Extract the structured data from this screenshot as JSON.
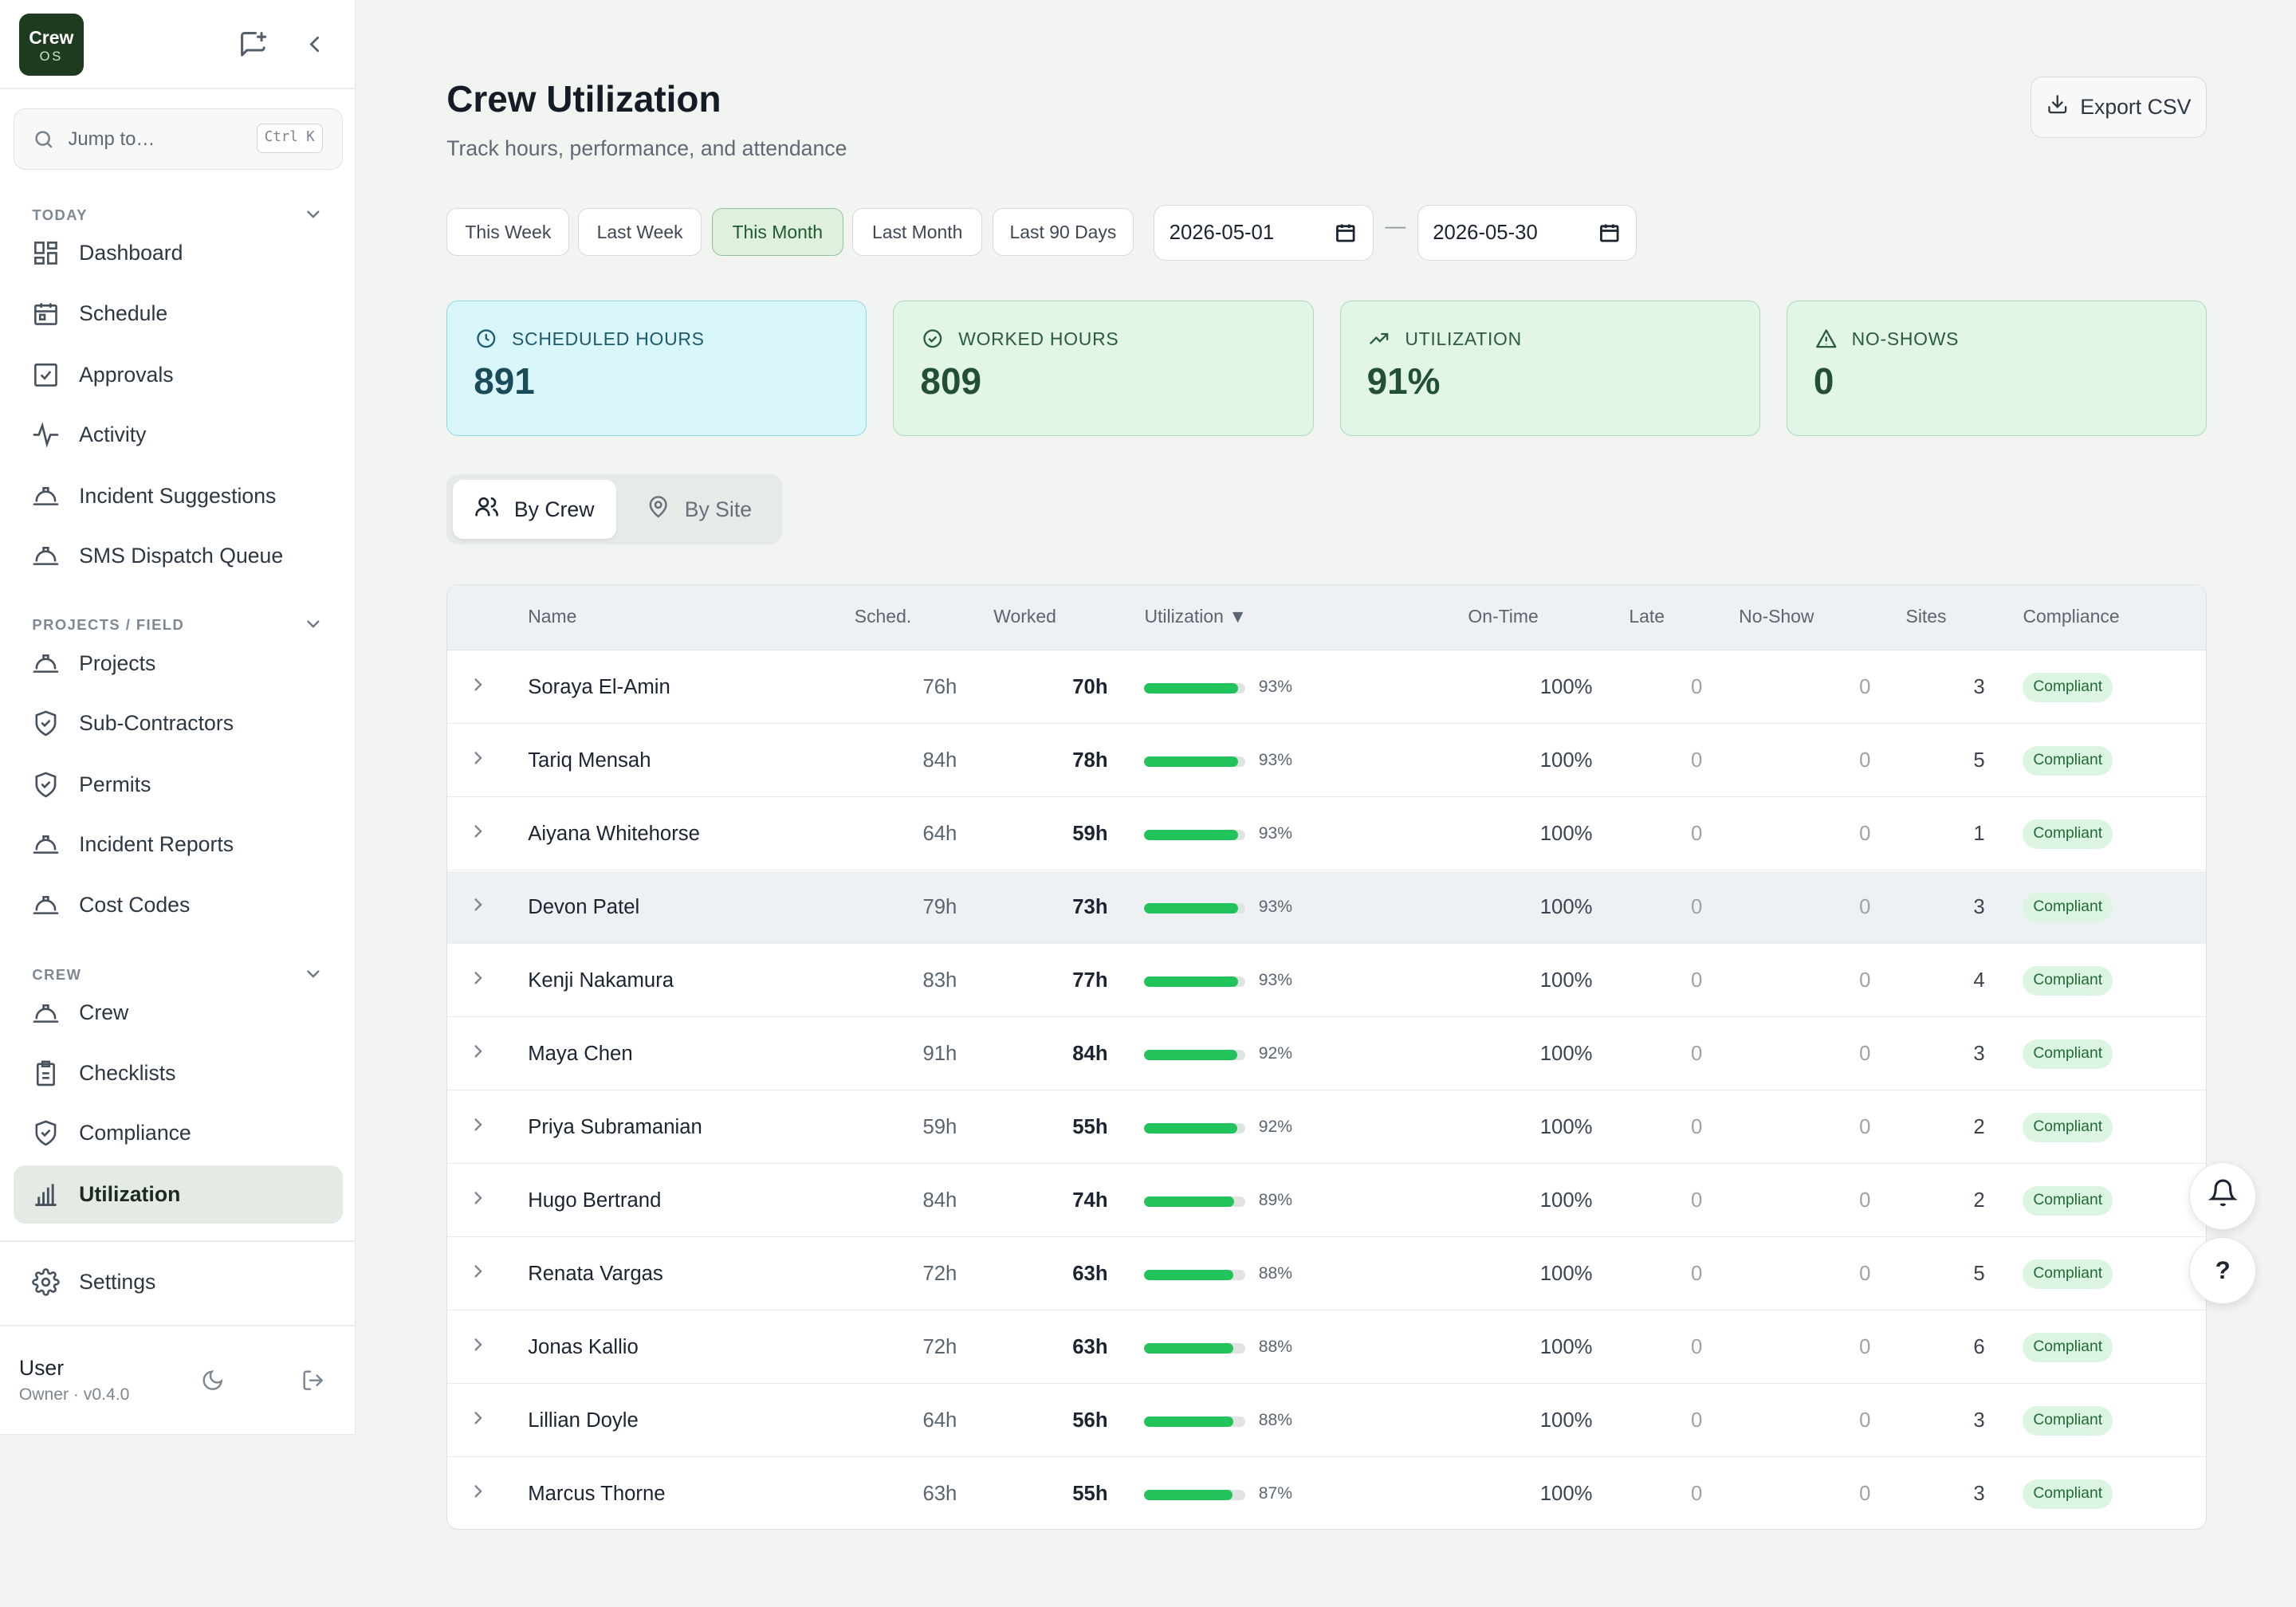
{
  "app": {
    "logo_line1": "Crew",
    "logo_line2": "OS"
  },
  "search": {
    "placeholder": "Jump to…",
    "shortcut": "Ctrl K"
  },
  "sidebar": {
    "sections": [
      {
        "label": "TODAY",
        "items": [
          {
            "label": "Dashboard",
            "icon": "dashboard-icon"
          },
          {
            "label": "Schedule",
            "icon": "calendar-icon"
          },
          {
            "label": "Approvals",
            "icon": "check-square-icon"
          },
          {
            "label": "Activity",
            "icon": "activity-icon"
          },
          {
            "label": "Incident Suggestions",
            "icon": "hardhat-icon"
          },
          {
            "label": "SMS Dispatch Queue",
            "icon": "hardhat-icon"
          }
        ]
      },
      {
        "label": "PROJECTS / FIELD",
        "items": [
          {
            "label": "Projects",
            "icon": "hardhat-icon"
          },
          {
            "label": "Sub-Contractors",
            "icon": "shield-icon"
          },
          {
            "label": "Permits",
            "icon": "shield-icon"
          },
          {
            "label": "Incident Reports",
            "icon": "hardhat-icon"
          },
          {
            "label": "Cost Codes",
            "icon": "hardhat-icon"
          }
        ]
      },
      {
        "label": "CREW",
        "items": [
          {
            "label": "Crew",
            "icon": "hardhat-icon"
          },
          {
            "label": "Checklists",
            "icon": "clipboard-icon"
          },
          {
            "label": "Compliance",
            "icon": "shield-icon"
          },
          {
            "label": "Utilization",
            "icon": "bar-chart-icon",
            "active": true
          }
        ]
      }
    ],
    "settings_label": "Settings",
    "user": {
      "name": "User",
      "role": "Owner · v0.4.0"
    }
  },
  "page": {
    "title": "Crew Utilization",
    "subtitle": "Track hours, performance, and attendance",
    "export_label": "Export CSV"
  },
  "ranges": [
    {
      "label": "This Week",
      "selected": false
    },
    {
      "label": "Last Week",
      "selected": false
    },
    {
      "label": "This Month",
      "selected": true
    },
    {
      "label": "Last Month",
      "selected": false
    },
    {
      "label": "Last 90 Days",
      "selected": false
    }
  ],
  "dates": {
    "start": "2026-05-01",
    "end": "2026-05-30",
    "separator": "—"
  },
  "stats": [
    {
      "label": "SCHEDULED HOURS",
      "value": "891",
      "icon": "clock-icon",
      "color": "#d9f6fb"
    },
    {
      "label": "WORKED HOURS",
      "value": "809",
      "icon": "check-circle-icon",
      "color": "#e1f6e6"
    },
    {
      "label": "UTILIZATION",
      "value": "91%",
      "icon": "trending-up-icon",
      "color": "#e1f6e6"
    },
    {
      "label": "NO-SHOWS",
      "value": "0",
      "icon": "warning-icon",
      "color": "#e1f6e6"
    }
  ],
  "tabs": [
    {
      "label": "By Crew",
      "active": true
    },
    {
      "label": "By Site",
      "active": false
    }
  ],
  "table": {
    "headers": {
      "name": "Name",
      "sched": "Sched.",
      "worked": "Worked",
      "util": "Utilization ▼",
      "ontime": "On-Time",
      "late": "Late",
      "noshow": "No-Show",
      "sites": "Sites",
      "compliance": "Compliance"
    },
    "rows": [
      {
        "name": "Soraya El-Amin",
        "sched": "76h",
        "worked": "70h",
        "util": 93,
        "util_label": "93%",
        "ontime": "100%",
        "late": "0",
        "noshow": "0",
        "sites": "3",
        "compliance": "Compliant"
      },
      {
        "name": "Tariq Mensah",
        "sched": "84h",
        "worked": "78h",
        "util": 93,
        "util_label": "93%",
        "ontime": "100%",
        "late": "0",
        "noshow": "0",
        "sites": "5",
        "compliance": "Compliant"
      },
      {
        "name": "Aiyana Whitehorse",
        "sched": "64h",
        "worked": "59h",
        "util": 93,
        "util_label": "93%",
        "ontime": "100%",
        "late": "0",
        "noshow": "0",
        "sites": "1",
        "compliance": "Compliant"
      },
      {
        "name": "Devon Patel",
        "sched": "79h",
        "worked": "73h",
        "util": 93,
        "util_label": "93%",
        "ontime": "100%",
        "late": "0",
        "noshow": "0",
        "sites": "3",
        "compliance": "Compliant",
        "highlighted": true
      },
      {
        "name": "Kenji Nakamura",
        "sched": "83h",
        "worked": "77h",
        "util": 93,
        "util_label": "93%",
        "ontime": "100%",
        "late": "0",
        "noshow": "0",
        "sites": "4",
        "compliance": "Compliant"
      },
      {
        "name": "Maya Chen",
        "sched": "91h",
        "worked": "84h",
        "util": 92,
        "util_label": "92%",
        "ontime": "100%",
        "late": "0",
        "noshow": "0",
        "sites": "3",
        "compliance": "Compliant"
      },
      {
        "name": "Priya Subramanian",
        "sched": "59h",
        "worked": "55h",
        "util": 92,
        "util_label": "92%",
        "ontime": "100%",
        "late": "0",
        "noshow": "0",
        "sites": "2",
        "compliance": "Compliant"
      },
      {
        "name": "Hugo Bertrand",
        "sched": "84h",
        "worked": "74h",
        "util": 89,
        "util_label": "89%",
        "ontime": "100%",
        "late": "0",
        "noshow": "0",
        "sites": "2",
        "compliance": "Compliant"
      },
      {
        "name": "Renata Vargas",
        "sched": "72h",
        "worked": "63h",
        "util": 88,
        "util_label": "88%",
        "ontime": "100%",
        "late": "0",
        "noshow": "0",
        "sites": "5",
        "compliance": "Compliant"
      },
      {
        "name": "Jonas Kallio",
        "sched": "72h",
        "worked": "63h",
        "util": 88,
        "util_label": "88%",
        "ontime": "100%",
        "late": "0",
        "noshow": "0",
        "sites": "6",
        "compliance": "Compliant"
      },
      {
        "name": "Lillian Doyle",
        "sched": "64h",
        "worked": "56h",
        "util": 88,
        "util_label": "88%",
        "ontime": "100%",
        "late": "0",
        "noshow": "0",
        "sites": "3",
        "compliance": "Compliant"
      },
      {
        "name": "Marcus Thorne",
        "sched": "63h",
        "worked": "55h",
        "util": 87,
        "util_label": "87%",
        "ontime": "100%",
        "late": "0",
        "noshow": "0",
        "sites": "3",
        "compliance": "Compliant"
      }
    ]
  },
  "fabs": [
    {
      "icon": "bell-icon"
    },
    {
      "icon": "help-icon",
      "label": "?"
    }
  ],
  "colors": {
    "accent": "#1f3b1f",
    "bar_fill": "#22c35a",
    "badge_bg": "#dcf5e2",
    "badge_text": "#1f6b36"
  }
}
